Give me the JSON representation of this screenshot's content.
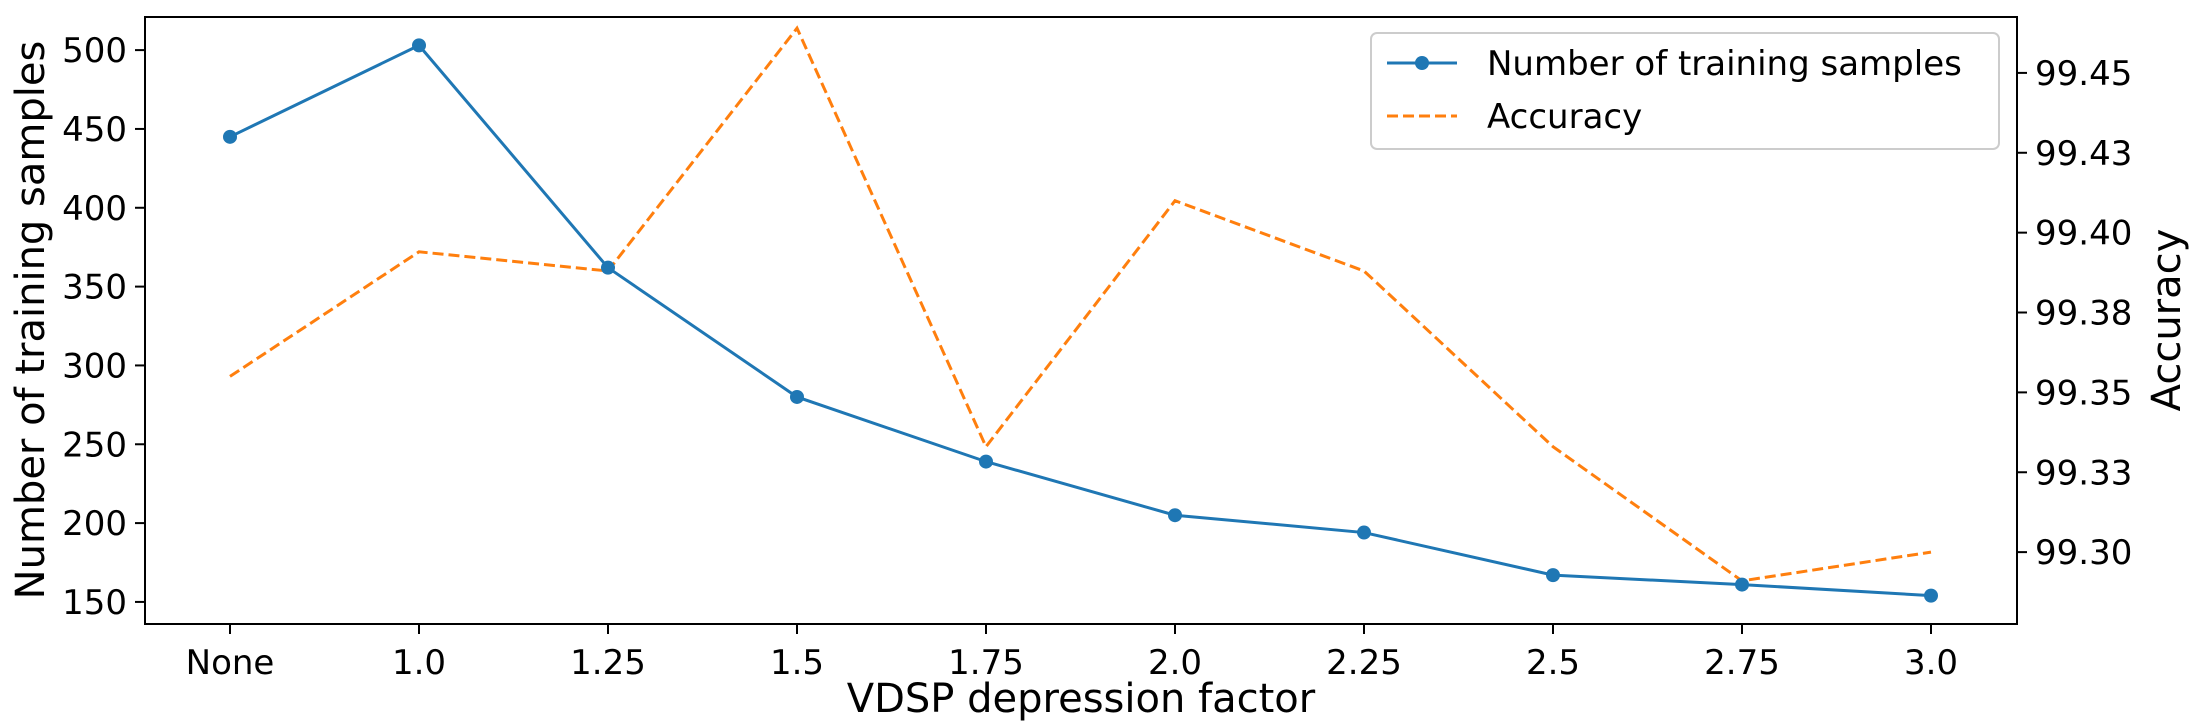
{
  "chart_data": {
    "type": "line",
    "categories": [
      "None",
      "1.0",
      "1.25",
      "1.5",
      "1.75",
      "2.0",
      "2.25",
      "2.5",
      "2.75",
      "3.0"
    ],
    "xlabel": "VDSP depression factor",
    "ylabel": "Number of training samples",
    "ylabel_right": "Accuracy",
    "ylim": [
      136,
      521
    ],
    "ylim_right": [
      99.2775,
      99.4675
    ],
    "yticks": [
      150,
      200,
      250,
      300,
      350,
      400,
      450,
      500
    ],
    "yticks_right": [
      "99.30",
      "99.33",
      "99.35",
      "99.38",
      "99.40",
      "99.43",
      "99.45"
    ],
    "yticks_right_values": [
      99.3,
      99.325,
      99.35,
      99.375,
      99.4,
      99.425,
      99.45
    ],
    "legend_position": "top-right",
    "series": [
      {
        "name": "Number of training samples",
        "axis": "left",
        "style": "solid-with-markers",
        "color": "#1f77b4",
        "values": [
          445,
          503,
          362,
          280,
          239,
          205,
          194,
          167,
          161,
          154
        ]
      },
      {
        "name": "Accuracy",
        "axis": "right",
        "style": "dashed",
        "color": "#ff7f0e",
        "values": [
          99.355,
          99.394,
          99.388,
          99.464,
          99.333,
          99.41,
          99.388,
          99.333,
          99.291,
          99.3
        ]
      }
    ]
  }
}
